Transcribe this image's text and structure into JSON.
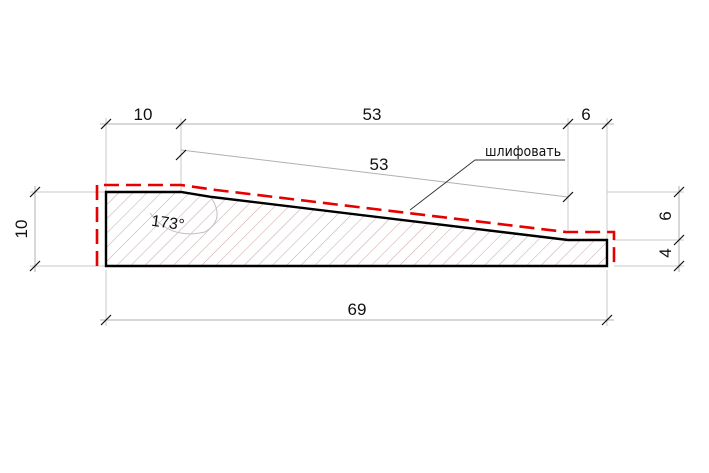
{
  "dimensions": {
    "top_left": "10",
    "top_middle": "53",
    "top_right": "6",
    "slope": "53",
    "left_height": "10",
    "right_upper": "6",
    "right_lower": "4",
    "bottom_total": "69"
  },
  "angle_label": "173°",
  "note": "шлифовать",
  "colors": {
    "outline": "#000000",
    "blank_contour": "#e60000",
    "hatch": "#c9a5a5",
    "guide_lines": "#b0b0b0"
  }
}
